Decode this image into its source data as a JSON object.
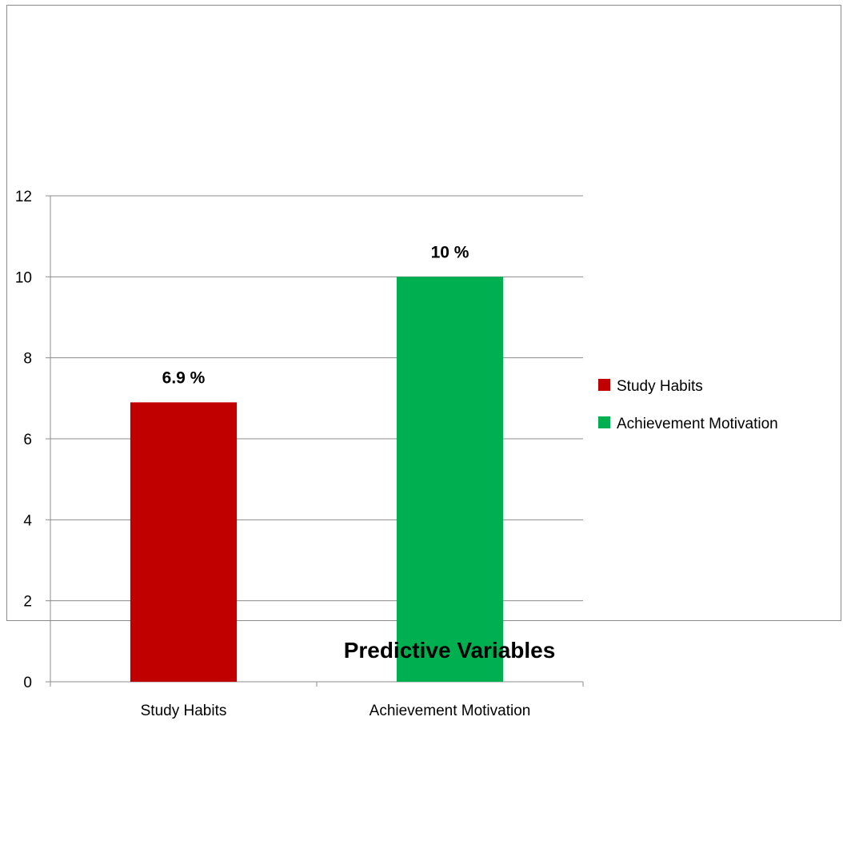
{
  "chart_data": {
    "type": "bar",
    "categories": [
      "Study Habits",
      "Achievement Motivation"
    ],
    "values": [
      6.9,
      10
    ],
    "data_labels": [
      "6.9  %",
      "10  %"
    ],
    "colors": [
      "#c00000",
      "#00b050"
    ],
    "ylim": [
      0,
      12
    ],
    "yticks": [
      0,
      2,
      4,
      6,
      8,
      10,
      12
    ],
    "grid": true,
    "legend": {
      "position": "right",
      "entries": [
        {
          "label": "Study Habits",
          "color": "#c00000"
        },
        {
          "label": "Achievement Motivation",
          "color": "#00b050"
        }
      ]
    },
    "xlabel": "Predictive Variables",
    "ylabel": "",
    "title": ""
  }
}
